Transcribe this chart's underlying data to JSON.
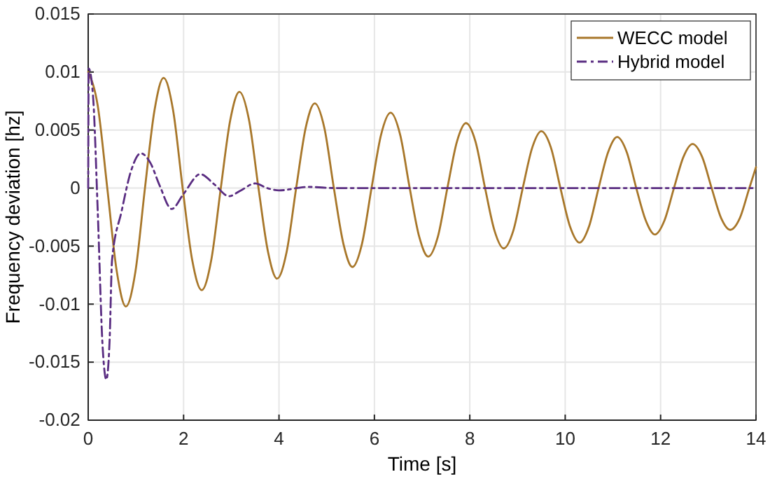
{
  "chart_data": {
    "type": "line",
    "xlabel": "Time [s]",
    "ylabel": "Frequency deviation [hz]",
    "xlim": [
      0,
      14
    ],
    "ylim": [
      -0.02,
      0.015
    ],
    "xticks": [
      0,
      2,
      4,
      6,
      8,
      10,
      12,
      14
    ],
    "yticks": [
      -0.02,
      -0.015,
      -0.01,
      -0.005,
      0,
      0.005,
      0.01,
      0.015
    ],
    "grid": true,
    "legend": "top right",
    "series": [
      {
        "name": "WECC model",
        "color": "#a8772a",
        "line_style": "solid",
        "x": [
          0,
          0.2,
          0.4,
          0.6,
          0.79,
          0.99,
          1.19,
          1.39,
          1.58,
          1.78,
          1.98,
          2.18,
          2.38,
          2.58,
          2.78,
          2.98,
          3.17,
          3.37,
          3.57,
          3.77,
          3.96,
          4.16,
          4.36,
          4.56,
          4.75,
          4.95,
          5.15,
          5.35,
          5.54,
          5.74,
          5.94,
          6.14,
          6.34,
          6.54,
          6.74,
          6.94,
          7.13,
          7.33,
          7.53,
          7.73,
          7.92,
          8.12,
          8.32,
          8.52,
          8.71,
          8.91,
          9.11,
          9.31,
          9.5,
          9.7,
          9.9,
          10.1,
          10.3,
          10.5,
          10.7,
          10.9,
          11.09,
          11.29,
          11.49,
          11.69,
          11.88,
          12.08,
          12.28,
          12.48,
          12.67,
          12.87,
          13.07,
          13.27,
          13.46,
          13.66,
          13.86,
          14
        ],
        "values": [
          0.01,
          0.0071,
          0,
          -0.0072,
          -0.0102,
          -0.0072,
          0,
          0.0067,
          0.0095,
          0.0067,
          0,
          -0.0062,
          -0.0088,
          -0.0062,
          0,
          0.0059,
          0.0083,
          0.0059,
          0,
          -0.0055,
          -0.0078,
          -0.0055,
          0,
          0.0052,
          0.0073,
          0.0052,
          0,
          -0.0048,
          -0.0068,
          -0.0048,
          0,
          0.0046,
          0.0065,
          0.0046,
          0,
          -0.0042,
          -0.0059,
          -0.0042,
          0,
          0.004,
          0.0056,
          0.004,
          0,
          -0.0037,
          -0.0052,
          -0.0037,
          0,
          0.0035,
          0.0049,
          0.0035,
          0,
          -0.0033,
          -0.0047,
          -0.0033,
          0,
          0.0031,
          0.0044,
          0.0031,
          0,
          -0.0028,
          -0.004,
          -0.0028,
          0,
          0.0027,
          0.0038,
          0.0027,
          0,
          -0.0026,
          -0.0036,
          -0.0026,
          0,
          0.0018
        ]
      },
      {
        "name": "Hybrid model",
        "color": "#5a2d82",
        "line_style": "dashdot",
        "x": [
          0,
          0.01,
          0.1,
          0.2,
          0.3,
          0.38,
          0.45,
          0.5,
          0.7,
          0.9,
          1.1,
          1.3,
          1.5,
          1.75,
          2.0,
          2.35,
          2.65,
          2.95,
          3.2,
          3.5,
          3.75,
          4.0,
          4.6,
          5.2,
          14
        ],
        "values": [
          0,
          0.0103,
          0.008,
          -0.002,
          -0.0135,
          -0.0165,
          -0.013,
          -0.0062,
          -0.002,
          0.0015,
          0.003,
          0.0022,
          0.0002,
          -0.0018,
          -0.0005,
          0.0012,
          0.0003,
          -0.0007,
          -0.0002,
          0.0004,
          0,
          -0.0002,
          0.0001,
          0,
          0
        ]
      }
    ]
  }
}
